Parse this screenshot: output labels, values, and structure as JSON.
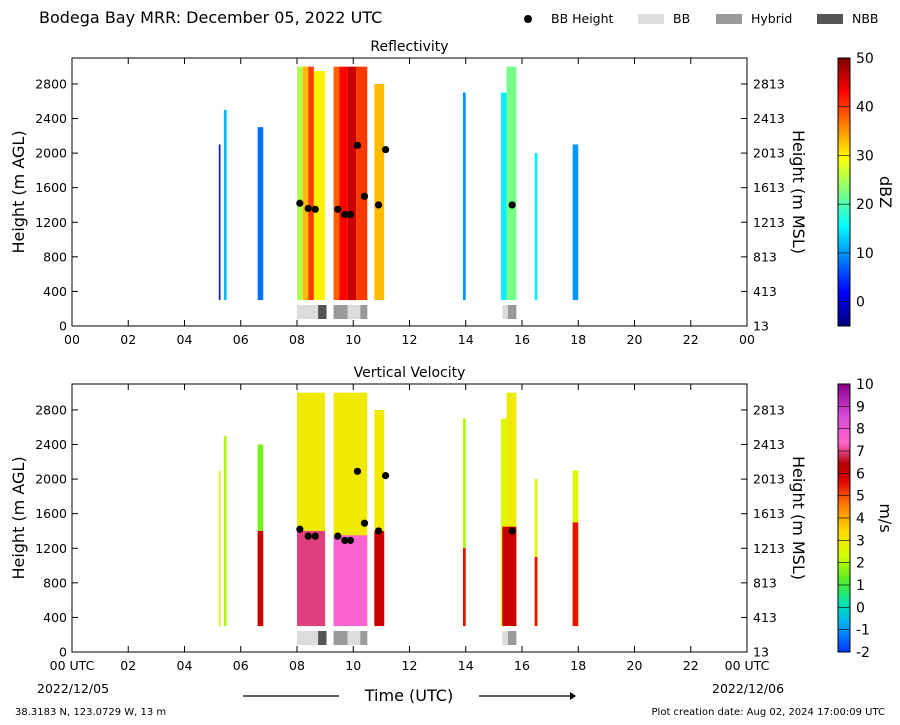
{
  "figure": {
    "title": "Bodega Bay MRR:  December 05, 2022 UTC",
    "legend": [
      {
        "label": "BB Height",
        "kind": "dot",
        "color": "#000000"
      },
      {
        "label": "BB",
        "kind": "box",
        "color": "#dcdcdc"
      },
      {
        "label": "Hybrid",
        "kind": "box",
        "color": "#9a9a9a"
      },
      {
        "label": "NBB",
        "kind": "box",
        "color": "#555555"
      }
    ],
    "xlabel": "Time (UTC)",
    "start_date": "2022/12/05",
    "end_date": "2022/12/06",
    "location": "38.3183 N, 123.0729 W, 13 m",
    "creation": "Plot creation date: Aug 02, 2024 17:00:09 UTC"
  },
  "chart_data": [
    {
      "type": "heatmap",
      "title": "Reflectivity",
      "ylabel": "Height (m AGL)",
      "ylabel_right": "Height (m MSL)",
      "xlim": [
        0,
        24
      ],
      "ylim": [
        0,
        3100
      ],
      "x_ticks": [
        "00",
        "02",
        "04",
        "06",
        "08",
        "10",
        "12",
        "14",
        "16",
        "18",
        "20",
        "22",
        "00"
      ],
      "y_ticks": [
        0,
        400,
        800,
        1200,
        1600,
        2000,
        2400,
        2800
      ],
      "y_ticks_right": [
        "13",
        "413",
        "813",
        "1213",
        "1613",
        "2013",
        "2413",
        "2813"
      ],
      "colorbar": {
        "label": "dBZ",
        "min": -5,
        "max": 50,
        "ticks": [
          "0",
          "10",
          "20",
          "30",
          "40",
          "50"
        ],
        "tick_values": [
          0,
          10,
          20,
          30,
          40,
          50
        ],
        "palette": "jet"
      },
      "bb_height": [
        {
          "time": 8.1,
          "height": 1420
        },
        {
          "time": 8.4,
          "height": 1360
        },
        {
          "time": 8.65,
          "height": 1350
        },
        {
          "time": 9.45,
          "height": 1350
        },
        {
          "time": 9.7,
          "height": 1290
        },
        {
          "time": 9.9,
          "height": 1290
        },
        {
          "time": 10.15,
          "height": 2090
        },
        {
          "time": 10.4,
          "height": 1500
        },
        {
          "time": 10.9,
          "height": 1400
        },
        {
          "time": 11.15,
          "height": 2040
        },
        {
          "time": 15.65,
          "height": 1400
        }
      ],
      "bb_class": [
        {
          "start": 8.0,
          "end": 8.75,
          "class": "BB"
        },
        {
          "start": 8.75,
          "end": 9.05,
          "class": "NBB"
        },
        {
          "start": 9.3,
          "end": 9.8,
          "class": "Hybrid"
        },
        {
          "start": 9.8,
          "end": 10.25,
          "class": "BB"
        },
        {
          "start": 10.25,
          "end": 10.5,
          "class": "Hybrid"
        },
        {
          "start": 15.3,
          "end": 15.5,
          "class": "BB"
        },
        {
          "start": 15.5,
          "end": 15.8,
          "class": "Hybrid"
        }
      ],
      "echoes": [
        {
          "t0": 5.22,
          "t1": 5.28,
          "bottom": 300,
          "top": 2100,
          "value": 3
        },
        {
          "t0": 5.4,
          "t1": 5.5,
          "bottom": 300,
          "top": 2500,
          "value": 12
        },
        {
          "t0": 6.6,
          "t1": 6.8,
          "bottom": 300,
          "top": 2300,
          "value": 8
        },
        {
          "t0": 8.0,
          "t1": 8.2,
          "bottom": 300,
          "top": 3000,
          "value": 25
        },
        {
          "t0": 8.2,
          "t1": 8.4,
          "bottom": 300,
          "top": 3000,
          "value": 33
        },
        {
          "t0": 8.4,
          "t1": 8.6,
          "bottom": 300,
          "top": 3000,
          "value": 40
        },
        {
          "t0": 8.6,
          "t1": 9.0,
          "bottom": 300,
          "top": 2950,
          "value": 30
        },
        {
          "t0": 9.3,
          "t1": 9.5,
          "bottom": 300,
          "top": 3000,
          "value": 38
        },
        {
          "t0": 9.5,
          "t1": 9.8,
          "bottom": 300,
          "top": 3000,
          "value": 43
        },
        {
          "t0": 9.8,
          "t1": 10.1,
          "bottom": 300,
          "top": 3000,
          "value": 46
        },
        {
          "t0": 10.1,
          "t1": 10.5,
          "bottom": 300,
          "top": 3000,
          "value": 40
        },
        {
          "t0": 10.75,
          "t1": 11.1,
          "bottom": 300,
          "top": 2800,
          "value": 33
        },
        {
          "t0": 13.9,
          "t1": 14.0,
          "bottom": 300,
          "top": 2700,
          "value": 10
        },
        {
          "t0": 15.25,
          "t1": 15.45,
          "bottom": 300,
          "top": 2700,
          "value": 15
        },
        {
          "t0": 15.45,
          "t1": 15.8,
          "bottom": 300,
          "top": 3000,
          "value": 22
        },
        {
          "t0": 16.45,
          "t1": 16.55,
          "bottom": 300,
          "top": 2000,
          "value": 15
        },
        {
          "t0": 17.8,
          "t1": 18.0,
          "bottom": 300,
          "top": 2100,
          "value": 10
        }
      ]
    },
    {
      "type": "heatmap",
      "title": "Vertical Velocity",
      "ylabel": "Height (m AGL)",
      "ylabel_right": "Height (m MSL)",
      "xlim": [
        0,
        24
      ],
      "ylim": [
        0,
        3100
      ],
      "x_ticks": [
        "00 UTC",
        "02",
        "04",
        "06",
        "08",
        "10",
        "12",
        "14",
        "16",
        "18",
        "20",
        "22",
        "00 UTC"
      ],
      "y_ticks": [
        0,
        400,
        800,
        1200,
        1600,
        2000,
        2400,
        2800
      ],
      "y_ticks_right": [
        "13",
        "413",
        "813",
        "1213",
        "1613",
        "2013",
        "2413",
        "2813"
      ],
      "colorbar": {
        "label": "m/s",
        "min": -2,
        "max": 10,
        "ticks": [
          "-2",
          "-1",
          "0",
          "1",
          "2",
          "3",
          "4",
          "5",
          "6",
          "7",
          "8",
          "9",
          "10"
        ],
        "tick_values": [
          -2,
          -1,
          0,
          1,
          2,
          3,
          4,
          5,
          6,
          7,
          8,
          9,
          10
        ],
        "palette": "velocity"
      },
      "bb_height": [
        {
          "time": 8.1,
          "height": 1420
        },
        {
          "time": 8.4,
          "height": 1340
        },
        {
          "time": 8.65,
          "height": 1340
        },
        {
          "time": 9.45,
          "height": 1340
        },
        {
          "time": 9.7,
          "height": 1290
        },
        {
          "time": 9.9,
          "height": 1290
        },
        {
          "time": 10.15,
          "height": 2090
        },
        {
          "time": 10.4,
          "height": 1490
        },
        {
          "time": 10.9,
          "height": 1400
        },
        {
          "time": 11.15,
          "height": 2040
        },
        {
          "time": 15.65,
          "height": 1400
        }
      ],
      "bb_class": [
        {
          "start": 8.0,
          "end": 8.75,
          "class": "BB"
        },
        {
          "start": 8.75,
          "end": 9.05,
          "class": "NBB"
        },
        {
          "start": 9.3,
          "end": 9.8,
          "class": "Hybrid"
        },
        {
          "start": 9.8,
          "end": 10.25,
          "class": "BB"
        },
        {
          "start": 10.25,
          "end": 10.5,
          "class": "Hybrid"
        },
        {
          "start": 15.3,
          "end": 15.5,
          "class": "BB"
        },
        {
          "start": 15.5,
          "end": 15.8,
          "class": "Hybrid"
        }
      ],
      "echoes": [
        {
          "t0": 5.22,
          "t1": 5.28,
          "bottom": 300,
          "top": 2100,
          "value": 2.5
        },
        {
          "t0": 5.4,
          "t1": 5.5,
          "bottom": 300,
          "top": 2500,
          "value": 2
        },
        {
          "t0": 6.6,
          "t1": 6.8,
          "bottom": 300,
          "top": 2400,
          "value": 1.5
        },
        {
          "t0": 8.0,
          "t1": 8.3,
          "bottom": 300,
          "top": 3000,
          "value": 3
        },
        {
          "t0": 8.3,
          "t1": 9.0,
          "bottom": 300,
          "top": 3000,
          "value": 3
        },
        {
          "t0": 9.3,
          "t1": 10.5,
          "bottom": 300,
          "top": 3000,
          "value": 3
        },
        {
          "t0": 10.75,
          "t1": 11.1,
          "bottom": 300,
          "top": 2800,
          "value": 3
        },
        {
          "t0": 13.9,
          "t1": 14.0,
          "bottom": 300,
          "top": 2700,
          "value": 2
        },
        {
          "t0": 15.25,
          "t1": 15.45,
          "bottom": 300,
          "top": 2700,
          "value": 2.5
        },
        {
          "t0": 15.45,
          "t1": 15.8,
          "bottom": 300,
          "top": 3000,
          "value": 3
        },
        {
          "t0": 16.45,
          "t1": 16.55,
          "bottom": 300,
          "top": 2000,
          "value": 2.5
        },
        {
          "t0": 17.8,
          "t1": 18.0,
          "bottom": 300,
          "top": 2100,
          "value": 2.5
        }
      ],
      "fall_speed_cores": [
        {
          "t0": 6.6,
          "t1": 6.8,
          "bottom": 300,
          "top": 1400,
          "value": 6
        },
        {
          "t0": 8.0,
          "t1": 9.0,
          "bottom": 300,
          "top": 1400,
          "value": 7
        },
        {
          "t0": 9.3,
          "t1": 10.5,
          "bottom": 300,
          "top": 1350,
          "value": 7.5
        },
        {
          "t0": 10.75,
          "t1": 11.1,
          "bottom": 300,
          "top": 1400,
          "value": 6
        },
        {
          "t0": 13.9,
          "t1": 14.0,
          "bottom": 300,
          "top": 1200,
          "value": 5.5
        },
        {
          "t0": 15.3,
          "t1": 15.8,
          "bottom": 300,
          "top": 1450,
          "value": 6
        },
        {
          "t0": 16.45,
          "t1": 16.55,
          "bottom": 300,
          "top": 1100,
          "value": 5.5
        },
        {
          "t0": 17.8,
          "t1": 18.0,
          "bottom": 300,
          "top": 1500,
          "value": 5.5
        }
      ]
    }
  ]
}
